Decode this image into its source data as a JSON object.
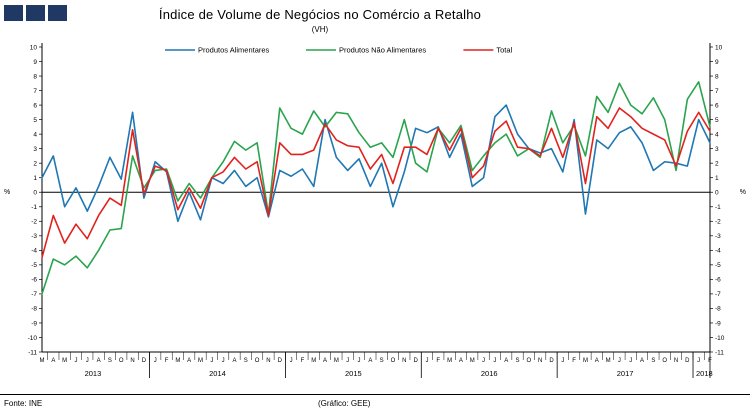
{
  "title": "Índice de Volume de Negócios no Comércio a Retalho",
  "subtitle": "(VH)",
  "footer": {
    "source": "Fonte: INE",
    "credit": "(Gráfico: GEE)"
  },
  "logo_color": "#1f3864",
  "chart_data": {
    "type": "line",
    "title": "Índice de Volume de Negócios no Comércio a Retalho",
    "subtitle": "(VH)",
    "ylabel_left": "%",
    "ylabel_right": "%",
    "ylim": [
      -11,
      10
    ],
    "ytick_step": 1,
    "grid": "zero-line-only",
    "legend_position": "top",
    "x_labels": [
      "M",
      "A",
      "M",
      "J",
      "J",
      "A",
      "S",
      "O",
      "N",
      "D",
      "J",
      "F",
      "M",
      "A",
      "M",
      "J",
      "J",
      "A",
      "S",
      "O",
      "N",
      "D",
      "J",
      "F",
      "M",
      "A",
      "M",
      "J",
      "J",
      "A",
      "S",
      "O",
      "N",
      "D",
      "J",
      "F",
      "M",
      "A",
      "M",
      "J",
      "J",
      "A",
      "S",
      "O",
      "N",
      "D",
      "J",
      "F",
      "M",
      "A",
      "M",
      "J",
      "J",
      "A",
      "S",
      "O",
      "N",
      "D",
      "J",
      "F"
    ],
    "year_groups": [
      {
        "label": "2013",
        "start": 0,
        "end": 9
      },
      {
        "label": "2014",
        "start": 10,
        "end": 21
      },
      {
        "label": "2015",
        "start": 22,
        "end": 33
      },
      {
        "label": "2016",
        "start": 34,
        "end": 45
      },
      {
        "label": "2017",
        "start": 46,
        "end": 57
      },
      {
        "label": "2018",
        "start": 58,
        "end": 59
      }
    ],
    "series": [
      {
        "name": "Produtos Alimentares",
        "color": "#1f77b4",
        "values": [
          1.0,
          2.5,
          -1.0,
          0.3,
          -1.3,
          0.4,
          2.4,
          0.9,
          5.5,
          -0.4,
          2.1,
          1.4,
          -2.0,
          0.0,
          -1.9,
          1.0,
          0.6,
          1.5,
          0.4,
          1.0,
          -1.7,
          1.5,
          1.1,
          1.6,
          0.4,
          5.0,
          2.4,
          1.5,
          2.3,
          0.4,
          2.0,
          -1.0,
          1.4,
          4.4,
          4.1,
          4.5,
          2.4,
          4.0,
          0.4,
          1.0,
          5.2,
          6.0,
          4.0,
          3.0,
          2.7,
          3.0,
          1.4,
          5.0,
          -1.5,
          3.6,
          3.0,
          4.1,
          4.5,
          3.4,
          1.5,
          2.1,
          2.0,
          1.8,
          5.0,
          3.4
        ]
      },
      {
        "name": "Produtos Não Alimentares",
        "color": "#2aa44f",
        "values": [
          -7.0,
          -4.6,
          -5.0,
          -4.4,
          -5.2,
          -4.0,
          -2.6,
          -2.5,
          2.5,
          0.3,
          1.5,
          1.6,
          -0.6,
          0.6,
          -0.4,
          1.0,
          2.1,
          3.5,
          2.9,
          3.4,
          -1.5,
          5.8,
          4.4,
          4.0,
          5.6,
          4.5,
          5.5,
          5.4,
          4.1,
          3.1,
          3.4,
          2.4,
          5.0,
          2.0,
          1.4,
          4.4,
          3.4,
          4.6,
          1.5,
          2.5,
          3.4,
          4.0,
          2.5,
          3.0,
          2.4,
          5.6,
          3.4,
          4.6,
          2.5,
          6.6,
          5.5,
          7.5,
          6.0,
          5.4,
          6.5,
          5.0,
          1.5,
          6.4,
          7.6,
          4.5
        ]
      },
      {
        "name": "Total",
        "color": "#e1231e",
        "values": [
          -4.5,
          -1.6,
          -3.5,
          -2.2,
          -3.2,
          -1.6,
          -0.4,
          -0.9,
          4.3,
          -0.1,
          1.8,
          1.5,
          -1.2,
          0.3,
          -1.1,
          1.0,
          1.4,
          2.4,
          1.6,
          2.1,
          -1.6,
          3.4,
          2.6,
          2.6,
          2.9,
          4.7,
          3.6,
          3.2,
          3.1,
          1.6,
          2.6,
          0.6,
          3.1,
          3.1,
          2.6,
          4.4,
          2.9,
          4.4,
          1.0,
          1.8,
          4.2,
          4.9,
          3.1,
          3.0,
          2.5,
          4.4,
          2.4,
          4.8,
          0.6,
          5.2,
          4.4,
          5.8,
          5.2,
          4.4,
          4.0,
          3.6,
          1.8,
          4.2,
          5.5,
          4.2
        ]
      }
    ]
  }
}
